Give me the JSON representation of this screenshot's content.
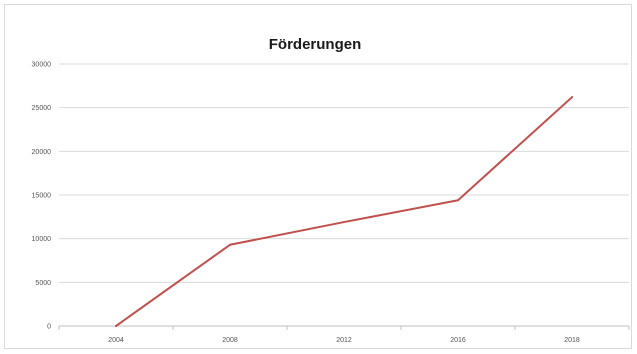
{
  "chart_data": {
    "type": "line",
    "title": "Förderungen",
    "xlabel": "",
    "ylabel": "",
    "x": [
      "2004",
      "2008",
      "2012",
      "2016",
      "2018"
    ],
    "tick_labels_x": [
      "2004",
      "2008",
      "2012",
      "2016",
      "2018"
    ],
    "ylim": [
      0,
      30000
    ],
    "yticks": [
      0,
      5000,
      10000,
      15000,
      20000,
      25000,
      30000
    ],
    "tick_labels_y": [
      "0",
      "5000",
      "10000",
      "15000",
      "20000",
      "25000",
      "30000"
    ],
    "series": [
      {
        "values": [
          0,
          9300,
          11900,
          14400,
          26200
        ]
      }
    ],
    "grid": true,
    "legend": "none"
  },
  "colors": {
    "series": "#c0504d",
    "grid": "#d9d9d9",
    "axis": "#bfbfbf"
  }
}
